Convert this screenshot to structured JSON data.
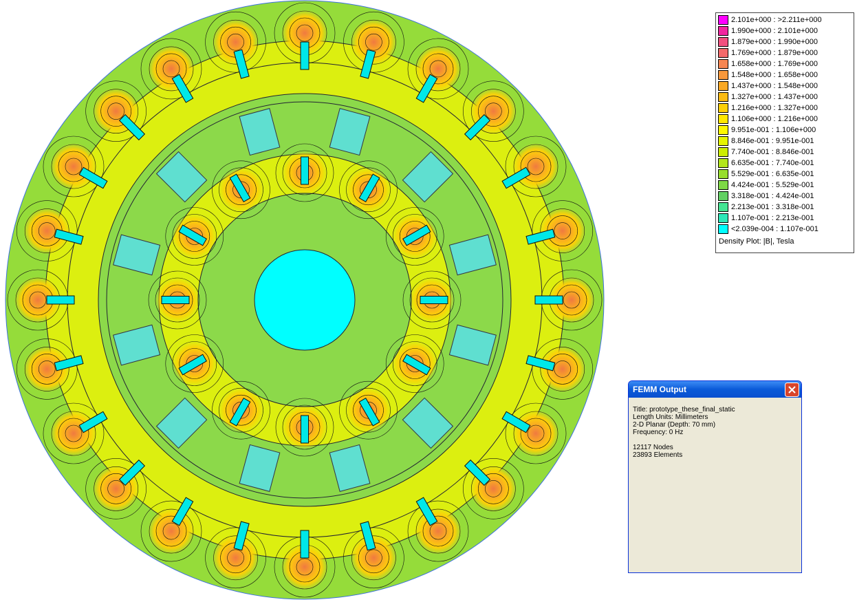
{
  "legend": {
    "entries": [
      {
        "label": "2.101e+000 : >2.211e+000",
        "color": "#ff00ff"
      },
      {
        "label": "1.990e+000 : 2.101e+000",
        "color": "#f2269f"
      },
      {
        "label": "1.879e+000 : 1.990e+000",
        "color": "#f2507f"
      },
      {
        "label": "1.769e+000 : 1.879e+000",
        "color": "#f46a6b"
      },
      {
        "label": "1.658e+000 : 1.769e+000",
        "color": "#f68652"
      },
      {
        "label": "1.548e+000 : 1.658e+000",
        "color": "#f7983c"
      },
      {
        "label": "1.437e+000 : 1.548e+000",
        "color": "#f9a824"
      },
      {
        "label": "1.327e+000 : 1.437e+000",
        "color": "#fbbb13"
      },
      {
        "label": "1.216e+000 : 1.327e+000",
        "color": "#fdd008"
      },
      {
        "label": "1.106e+000 : 1.216e+000",
        "color": "#ffe800"
      },
      {
        "label": "9.951e-001 : 1.106e+000",
        "color": "#fdf800"
      },
      {
        "label": "8.846e-001 : 9.951e-001",
        "color": "#e6f500"
      },
      {
        "label": "7.740e-001 : 8.846e-001",
        "color": "#cdee00"
      },
      {
        "label": "6.635e-001 : 7.740e-001",
        "color": "#b2e61b"
      },
      {
        "label": "5.529e-001 : 6.635e-001",
        "color": "#98de2d"
      },
      {
        "label": "4.424e-001 : 5.529e-001",
        "color": "#7ed845"
      },
      {
        "label": "3.318e-001 : 4.424e-001",
        "color": "#62d063"
      },
      {
        "label": "2.213e-001 : 3.318e-001",
        "color": "#45e593"
      },
      {
        "label": "1.107e-001 : 2.213e-001",
        "color": "#2de8b8"
      },
      {
        "label": "<2.039e-004 : 1.107e-001",
        "color": "#00ffff"
      }
    ],
    "caption": "Density Plot: |B|, Tesla"
  },
  "window": {
    "title": "FEMM Output",
    "problem": [
      "Title: prototype_these_final_static",
      "Length Units: Millimeters",
      "2-D Planar (Depth: 70 mm)",
      "Frequency: 0 Hz"
    ],
    "mesh": [
      "12117 Nodes",
      "23893 Elements"
    ]
  }
}
